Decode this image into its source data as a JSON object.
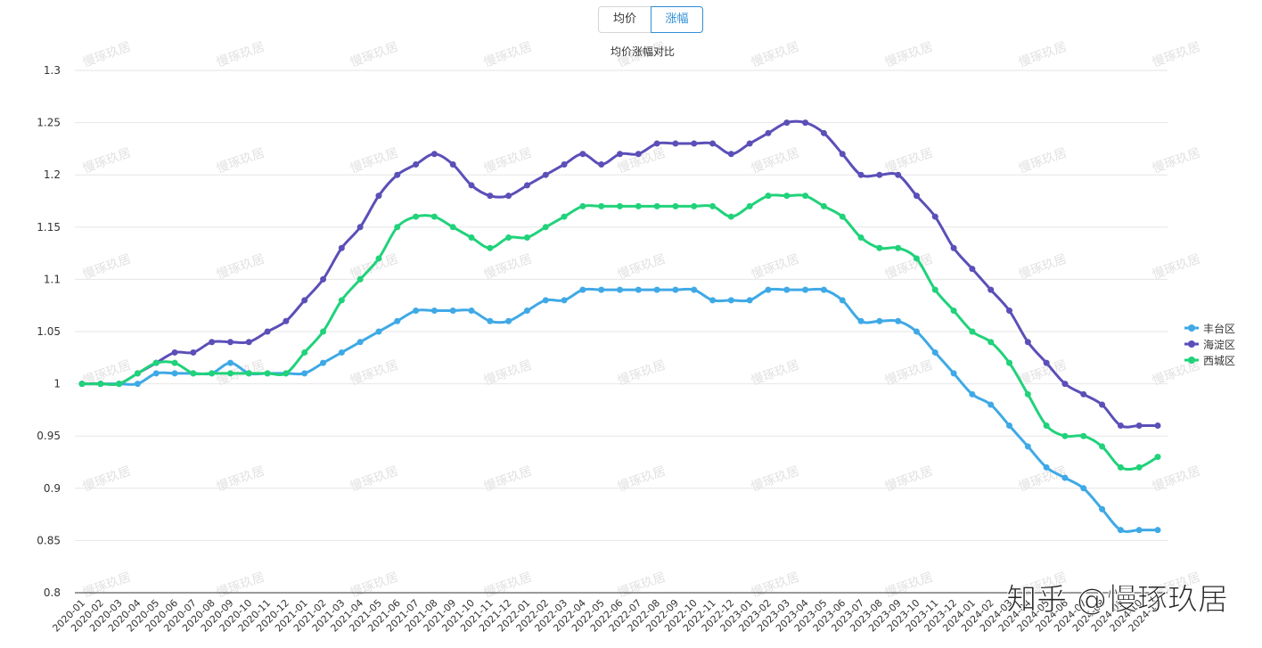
{
  "toggle": {
    "left": "均价",
    "right": "涨幅"
  },
  "watermarks": {
    "repeat": "慢琢玖居",
    "corner": "知乎 @慢琢玖居"
  },
  "chart_data": {
    "type": "line",
    "title": "均价涨幅对比",
    "xlabel": "",
    "ylabel": "",
    "ylim": [
      0.8,
      1.3
    ],
    "yticks": [
      "0.8",
      "0.85",
      "0.9",
      "0.95",
      "1",
      "1.05",
      "1.1",
      "1.15",
      "1.2",
      "1.25",
      "1.3"
    ],
    "grid": true,
    "legend_position": "right",
    "categories": [
      "2020-01",
      "2020-02",
      "2020-03",
      "2020-04",
      "2020-05",
      "2020-06",
      "2020-07",
      "2020-08",
      "2020-09",
      "2020-10",
      "2020-11",
      "2020-12",
      "2021-01",
      "2021-02",
      "2021-03",
      "2021-04",
      "2021-05",
      "2021-06",
      "2021-07",
      "2021-08",
      "2021-09",
      "2021-10",
      "2021-11",
      "2021-12",
      "2022-01",
      "2022-02",
      "2022-03",
      "2022-04",
      "2022-05",
      "2022-06",
      "2022-07",
      "2022-08",
      "2022-09",
      "2022-10",
      "2022-11",
      "2022-12",
      "2023-01",
      "2023-02",
      "2023-03",
      "2023-04",
      "2023-05",
      "2023-06",
      "2023-07",
      "2023-08",
      "2023-09",
      "2023-10",
      "2023-11",
      "2023-12",
      "2024-01",
      "2024-02",
      "2024-03",
      "2024-04",
      "2024-05",
      "2024-06",
      "2024-07",
      "2024-08",
      "2024-09",
      "2024-10",
      "2024-11"
    ],
    "series": [
      {
        "name": "丰台区",
        "color": "#3fa9e6",
        "values": [
          1,
          1,
          1,
          1,
          1.01,
          1.01,
          1.01,
          1.01,
          1.02,
          1.01,
          1.01,
          1.01,
          1.01,
          1.02,
          1.03,
          1.04,
          1.05,
          1.06,
          1.07,
          1.07,
          1.07,
          1.07,
          1.06,
          1.06,
          1.07,
          1.08,
          1.08,
          1.09,
          1.09,
          1.09,
          1.09,
          1.09,
          1.09,
          1.09,
          1.08,
          1.08,
          1.08,
          1.09,
          1.09,
          1.09,
          1.09,
          1.08,
          1.06,
          1.06,
          1.06,
          1.05,
          1.03,
          1.01,
          0.99,
          0.98,
          0.96,
          0.94,
          0.92,
          0.91,
          0.9,
          0.88,
          0.86,
          0.86,
          0.86
        ]
      },
      {
        "name": "海淀区",
        "color": "#5b4fb8",
        "values": [
          1,
          1,
          1,
          1.01,
          1.02,
          1.03,
          1.03,
          1.04,
          1.04,
          1.04,
          1.05,
          1.06,
          1.08,
          1.1,
          1.13,
          1.15,
          1.18,
          1.2,
          1.21,
          1.22,
          1.21,
          1.19,
          1.18,
          1.18,
          1.19,
          1.2,
          1.21,
          1.22,
          1.21,
          1.22,
          1.22,
          1.23,
          1.23,
          1.23,
          1.23,
          1.22,
          1.23,
          1.24,
          1.25,
          1.25,
          1.24,
          1.22,
          1.2,
          1.2,
          1.2,
          1.18,
          1.16,
          1.13,
          1.11,
          1.09,
          1.07,
          1.04,
          1.02,
          1.0,
          0.99,
          0.98,
          0.96,
          0.96,
          0.96
        ]
      },
      {
        "name": "西城区",
        "color": "#20d27a",
        "values": [
          1,
          1,
          1,
          1.01,
          1.02,
          1.02,
          1.01,
          1.01,
          1.01,
          1.01,
          1.01,
          1.01,
          1.03,
          1.05,
          1.08,
          1.1,
          1.12,
          1.15,
          1.16,
          1.16,
          1.15,
          1.14,
          1.13,
          1.14,
          1.14,
          1.15,
          1.16,
          1.17,
          1.17,
          1.17,
          1.17,
          1.17,
          1.17,
          1.17,
          1.17,
          1.16,
          1.17,
          1.18,
          1.18,
          1.18,
          1.17,
          1.16,
          1.14,
          1.13,
          1.13,
          1.12,
          1.09,
          1.07,
          1.05,
          1.04,
          1.02,
          0.99,
          0.96,
          0.95,
          0.95,
          0.94,
          0.92,
          0.92,
          0.93
        ]
      }
    ]
  }
}
